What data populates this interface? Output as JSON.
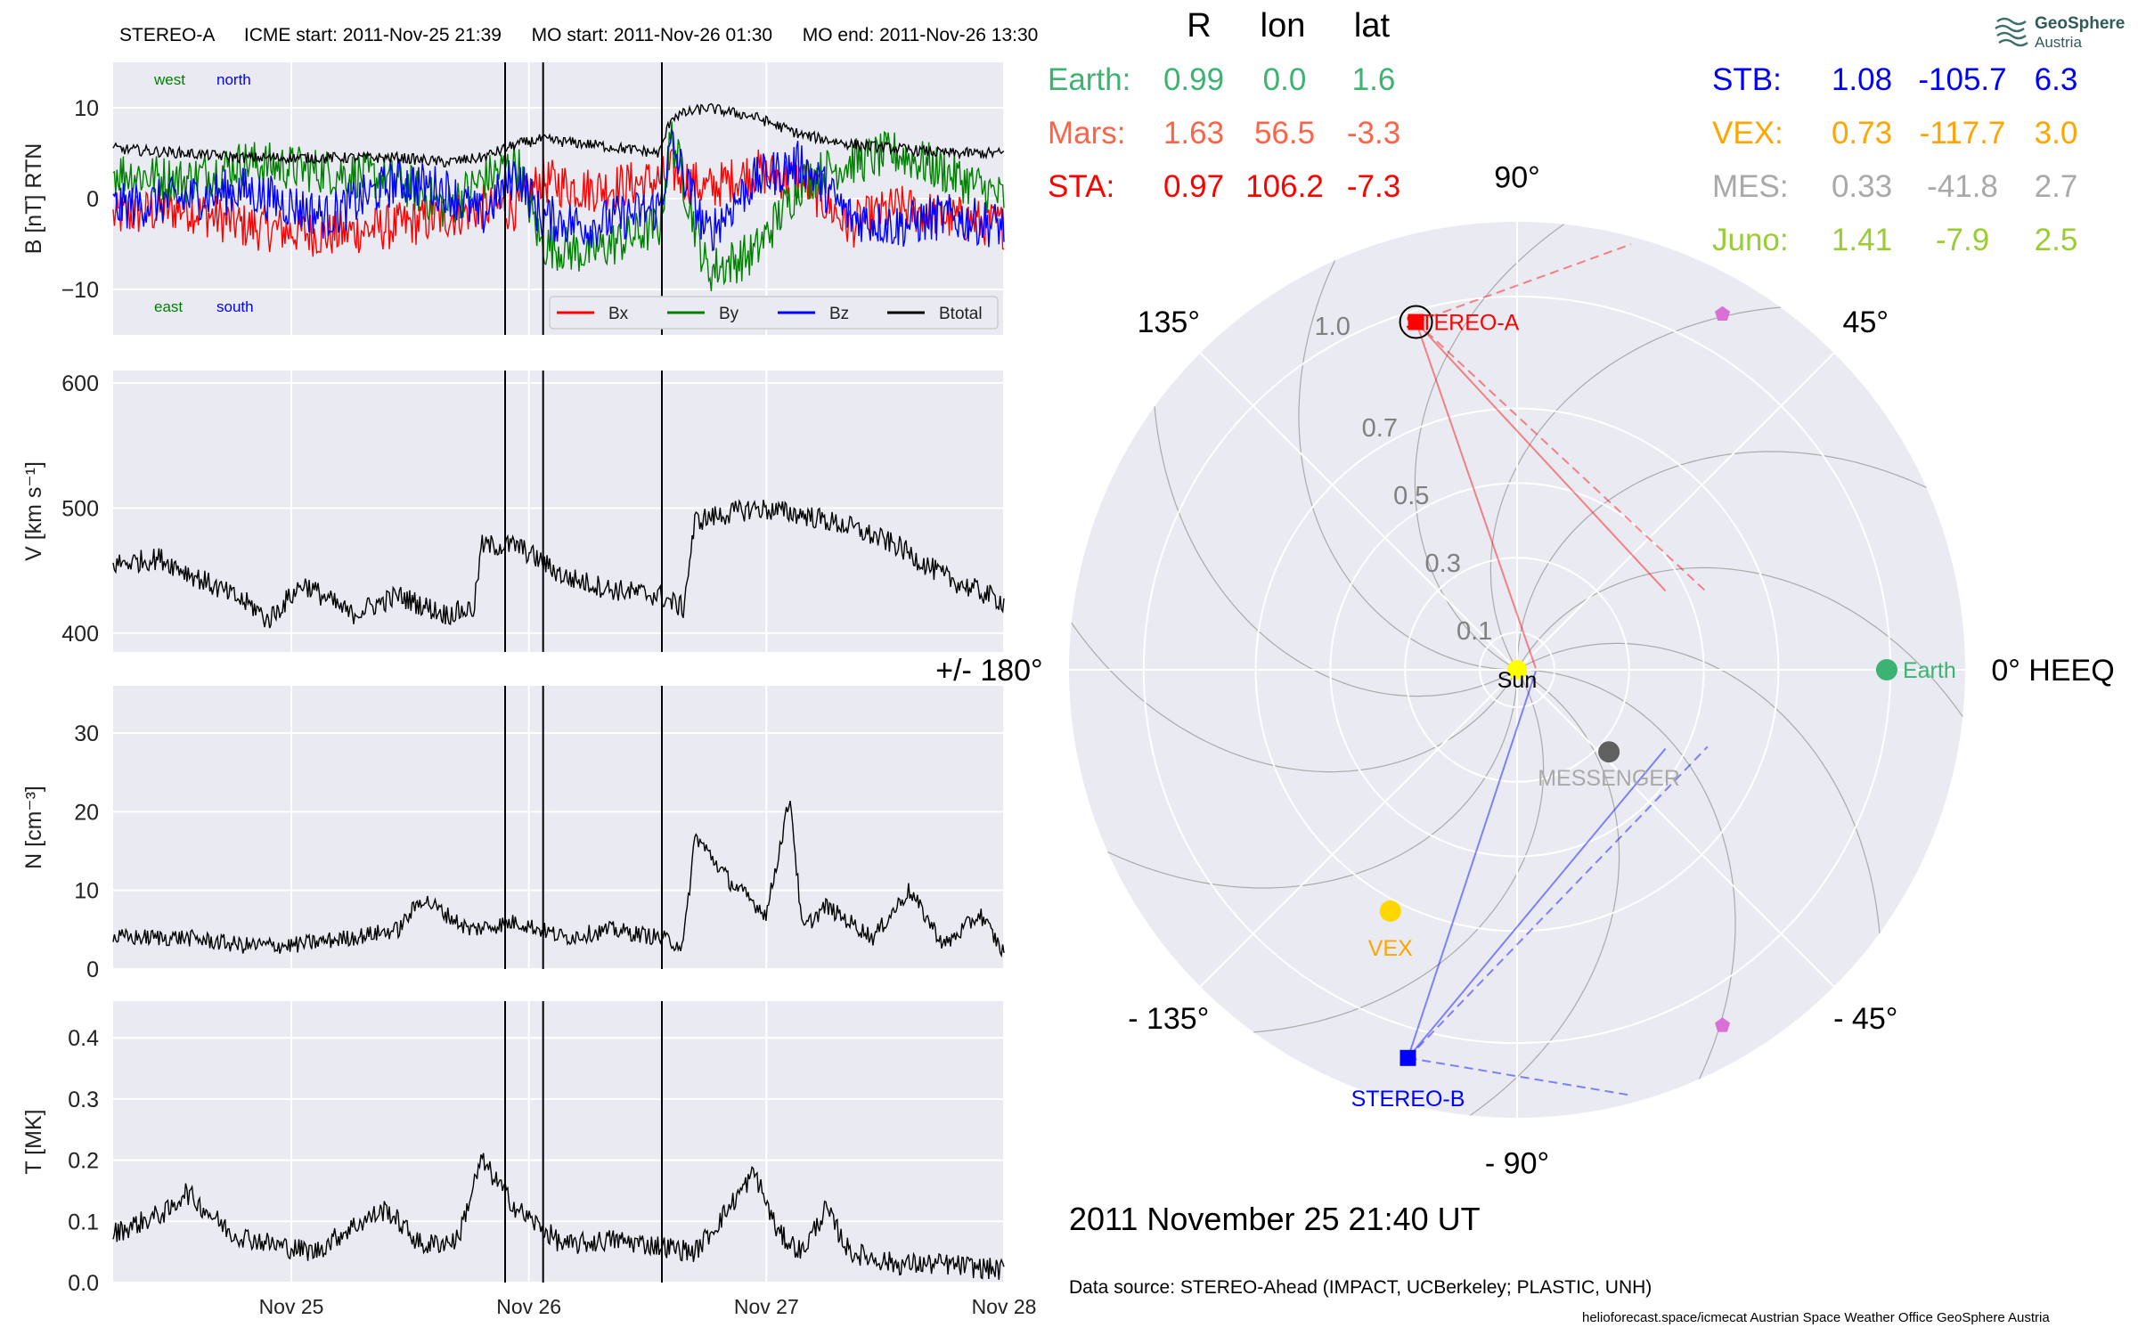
{
  "header": {
    "spacecraft": "STEREO-A",
    "icme_start": "ICME start: 2011-Nov-25 21:39",
    "mo_start": "MO start: 2011-Nov-26 01:30",
    "mo_end": "MO end: 2011-Nov-26 13:30"
  },
  "colors": {
    "panel_bg": "#eaeaf2",
    "bx": "#ff0000",
    "by": "#008000",
    "bz": "#0000ff",
    "btotal": "#000000",
    "earth": "#3cb371",
    "mars": "#ff6347",
    "sta": "#ff0000",
    "stb": "#0000ff",
    "vex": "#ffa500",
    "mes": "#a9a9a9",
    "juno": "#9acd32",
    "psp": "#da70d6"
  },
  "logo": {
    "name": "GeoSphere",
    "sub": "Austria",
    "icon": "wave-logo-icon"
  },
  "table": {
    "headers": [
      "R",
      "lon",
      "lat"
    ],
    "left_rows": [
      {
        "name": "Earth:",
        "R": "0.99",
        "lon": "0.0",
        "lat": "1.6",
        "color": "#3cb371"
      },
      {
        "name": "Mars:",
        "R": "1.63",
        "lon": "56.5",
        "lat": "-3.3",
        "color": "#ff6347"
      },
      {
        "name": "STA:",
        "R": "0.97",
        "lon": "106.2",
        "lat": "-7.3",
        "color": "#ff0000"
      }
    ],
    "right_rows": [
      {
        "name": "STB:",
        "R": "1.08",
        "lon": "-105.7",
        "lat": "6.3",
        "color": "#0000ff"
      },
      {
        "name": "VEX:",
        "R": "0.73",
        "lon": "-117.7",
        "lat": "3.0",
        "color": "#ffa500"
      },
      {
        "name": "MES:",
        "R": "0.33",
        "lon": "-41.8",
        "lat": "2.7",
        "color": "#a9a9a9"
      },
      {
        "name": "Juno:",
        "R": "1.41",
        "lon": "-7.9",
        "lat": "2.5",
        "color": "#9acd32"
      }
    ]
  },
  "date_line": "2011 November 25  21:40 UT",
  "data_source": "Data source: STEREO-Ahead (IMPACT, UCBerkeley; PLASTIC, UNH)",
  "footer": "helioforecast.space/icmecat   Austrian Space Weather Office   GeoSphere Austria",
  "chart_data": [
    {
      "type": "line",
      "ylabel": "B [nT] RTN",
      "ylim": [
        -15,
        15
      ],
      "yticks": [
        -10,
        0,
        10
      ],
      "xlim": [
        0,
        3.75
      ],
      "x_unit": "days since 2011-Nov-24 06:00",
      "annotations": {
        "west": "west",
        "north": "north",
        "east": "east",
        "south": "south"
      },
      "legend_position": "lower right",
      "series": [
        {
          "name": "Bx",
          "color": "#ff0000",
          "x": [
            0,
            0.3,
            0.55,
            0.9,
            1.2,
            1.4,
            1.55,
            1.7,
            1.8,
            2.0,
            2.3,
            2.35,
            2.5,
            2.7,
            2.9,
            3.1,
            3.3,
            3.5,
            3.75
          ],
          "values": [
            -2,
            -1,
            -3,
            -4,
            -3,
            -2,
            -1,
            -1,
            2,
            1,
            2,
            3,
            1,
            3,
            2,
            -3,
            -1,
            -2,
            -3
          ]
        },
        {
          "name": "By",
          "color": "#008000",
          "x": [
            0,
            0.3,
            0.55,
            0.9,
            1.2,
            1.4,
            1.55,
            1.7,
            1.8,
            2.0,
            2.3,
            2.35,
            2.5,
            2.7,
            2.9,
            3.1,
            3.3,
            3.5,
            3.75
          ],
          "values": [
            3,
            2,
            4,
            3,
            2,
            -1,
            2,
            4,
            -5,
            -6,
            -3,
            7,
            -8,
            -6,
            2,
            4,
            5,
            3,
            0
          ]
        },
        {
          "name": "Bz",
          "color": "#0000ff",
          "x": [
            0,
            0.3,
            0.55,
            0.9,
            1.2,
            1.4,
            1.55,
            1.7,
            1.8,
            2.0,
            2.3,
            2.35,
            2.5,
            2.7,
            2.9,
            3.1,
            3.3,
            3.5,
            3.75
          ],
          "values": [
            -1,
            0,
            1,
            -2,
            2,
            1,
            -2,
            3,
            -2,
            -3,
            -1,
            6,
            -4,
            2,
            4,
            -2,
            -3,
            -2,
            -3
          ]
        },
        {
          "name": "Btotal",
          "color": "#000000",
          "x": [
            0,
            0.3,
            0.55,
            0.9,
            1.2,
            1.4,
            1.55,
            1.7,
            1.8,
            2.0,
            2.3,
            2.35,
            2.5,
            2.7,
            2.9,
            3.1,
            3.3,
            3.5,
            3.75
          ],
          "values": [
            5.5,
            5,
            4.5,
            4.5,
            4.5,
            4,
            4.5,
            6,
            6.5,
            6,
            5,
            9,
            10,
            9,
            7,
            6,
            5.5,
            5,
            5
          ]
        }
      ]
    },
    {
      "type": "line",
      "ylabel": "V [km s⁻¹]",
      "ylim": [
        385,
        610
      ],
      "yticks": [
        400,
        500,
        600
      ],
      "xlim": [
        0,
        3.75
      ],
      "series": [
        {
          "name": "",
          "color": "#000000",
          "x": [
            0,
            0.2,
            0.4,
            0.6,
            0.65,
            0.8,
            1.0,
            1.2,
            1.4,
            1.52,
            1.55,
            1.7,
            1.9,
            2.1,
            2.3,
            2.4,
            2.45,
            2.7,
            2.9,
            3.1,
            3.3,
            3.5,
            3.75
          ],
          "values": [
            455,
            460,
            440,
            420,
            410,
            440,
            415,
            430,
            415,
            420,
            470,
            470,
            445,
            435,
            430,
            420,
            490,
            500,
            495,
            485,
            470,
            445,
            425
          ]
        }
      ]
    },
    {
      "type": "line",
      "ylabel": "N [cm⁻³]",
      "ylim": [
        0,
        36
      ],
      "yticks": [
        0,
        10,
        20,
        30
      ],
      "xlim": [
        0,
        3.75
      ],
      "series": [
        {
          "name": "",
          "color": "#000000",
          "x": [
            0,
            0.3,
            0.55,
            0.75,
            1.0,
            1.2,
            1.3,
            1.5,
            1.7,
            1.9,
            2.1,
            2.3,
            2.4,
            2.45,
            2.6,
            2.75,
            2.85,
            2.9,
            3.0,
            3.2,
            3.35,
            3.5,
            3.65,
            3.75
          ],
          "values": [
            4,
            4,
            3,
            3,
            4,
            5,
            9,
            5,
            6,
            4,
            5,
            4,
            3,
            17,
            11,
            7,
            22,
            5,
            8,
            4,
            10,
            3,
            7,
            2
          ]
        }
      ]
    },
    {
      "type": "line",
      "ylabel": "T [MK]",
      "ylim": [
        0,
        0.46
      ],
      "yticks": [
        0.0,
        0.1,
        0.2,
        0.3,
        0.4
      ],
      "xlim": [
        0,
        3.75
      ],
      "xtick_labels": [
        "Nov 25",
        "Nov 26",
        "Nov 27",
        "Nov 28"
      ],
      "xtick_positions": [
        0.75,
        1.75,
        2.75,
        3.75
      ],
      "series": [
        {
          "name": "",
          "color": "#000000",
          "x": [
            0,
            0.25,
            0.3,
            0.5,
            0.7,
            0.85,
            1.0,
            1.15,
            1.3,
            1.45,
            1.55,
            1.7,
            1.9,
            2.1,
            2.3,
            2.45,
            2.55,
            2.7,
            2.8,
            2.9,
            3.0,
            3.1,
            3.3,
            3.5,
            3.75
          ],
          "values": [
            0.08,
            0.12,
            0.15,
            0.08,
            0.06,
            0.05,
            0.09,
            0.12,
            0.06,
            0.07,
            0.2,
            0.12,
            0.06,
            0.07,
            0.06,
            0.05,
            0.1,
            0.18,
            0.08,
            0.05,
            0.12,
            0.05,
            0.03,
            0.03,
            0.02
          ]
        }
      ]
    },
    {
      "type": "scatter",
      "subtype": "polar",
      "rmax": 1.2,
      "r_tick_labels": [
        "0.1",
        "0.3",
        "0.5",
        "0.7",
        "1.0"
      ],
      "r_ticks": [
        0.1,
        0.3,
        0.5,
        0.7,
        1.0
      ],
      "angle_labels": [
        {
          "text": "0° HEEQ",
          "angle": 0
        },
        {
          "text": "45°",
          "angle": 45
        },
        {
          "text": "90°",
          "angle": 90
        },
        {
          "text": "135°",
          "angle": 135
        },
        {
          "text": "+/- 180°",
          "angle": 180
        },
        {
          "text": "- 135°",
          "angle": 225
        },
        {
          "text": "- 90°",
          "angle": 270
        },
        {
          "text": "- 45°",
          "angle": 315
        }
      ],
      "points": [
        {
          "label": "Sun",
          "r": 0.0,
          "lon": 0,
          "color": "#ffff00",
          "marker": "circle"
        },
        {
          "label": "Earth",
          "r": 0.99,
          "lon": 0.0,
          "color": "#3cb371",
          "marker": "circle"
        },
        {
          "label": "STEREO-A",
          "r": 0.97,
          "lon": 106.2,
          "color": "#ff0000",
          "marker": "square"
        },
        {
          "label": "STEREO-B",
          "r": 1.08,
          "lon": -105.7,
          "color": "#0000ff",
          "marker": "square"
        },
        {
          "label": "VEX",
          "r": 0.73,
          "lon": -117.7,
          "color": "#ffd700",
          "marker": "circle"
        },
        {
          "label": "MESSENGER",
          "r": 0.33,
          "lon": -41.8,
          "color": "#606060",
          "marker": "circle"
        },
        {
          "label": "",
          "r": 1.1,
          "lon": 60,
          "color": "#da70d6",
          "marker": "pentagon"
        },
        {
          "label": "",
          "r": 1.1,
          "lon": -60,
          "color": "#da70d6",
          "marker": "pentagon"
        }
      ]
    }
  ]
}
